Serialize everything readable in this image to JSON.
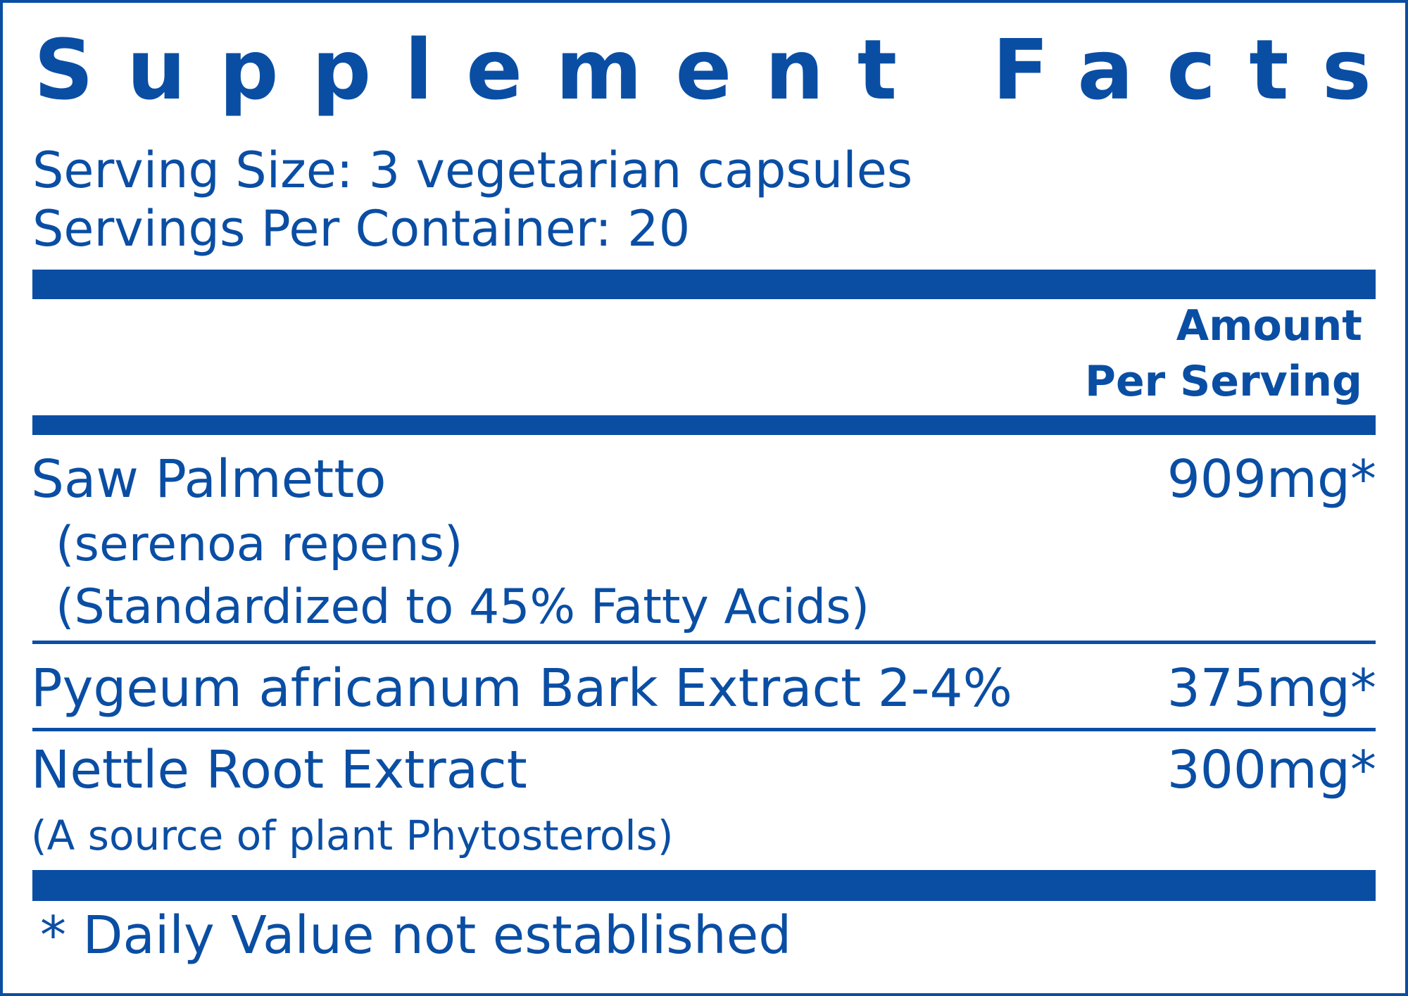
{
  "header": {
    "title": "Supplement Facts",
    "serving_size": "Serving Size: 3 vegetarian capsules",
    "servings_per_container": "Servings Per Container: 20"
  },
  "table": {
    "column_header": [
      "Amount",
      "Per Serving"
    ],
    "rows": [
      {
        "name": "Saw Palmetto",
        "notes": [
          "(serenoa repens)",
          "(Standardized to 45% Fatty Acids)"
        ],
        "amount": "909mg*"
      },
      {
        "name": "Pygeum africanum Bark Extract 2-4%",
        "amount": "375mg*"
      },
      {
        "name": "Nettle Root Extract",
        "notes": [
          "(A source of plant Phytosterols)"
        ],
        "amount": "300mg*"
      }
    ]
  },
  "footnote": "* Daily Value not established"
}
